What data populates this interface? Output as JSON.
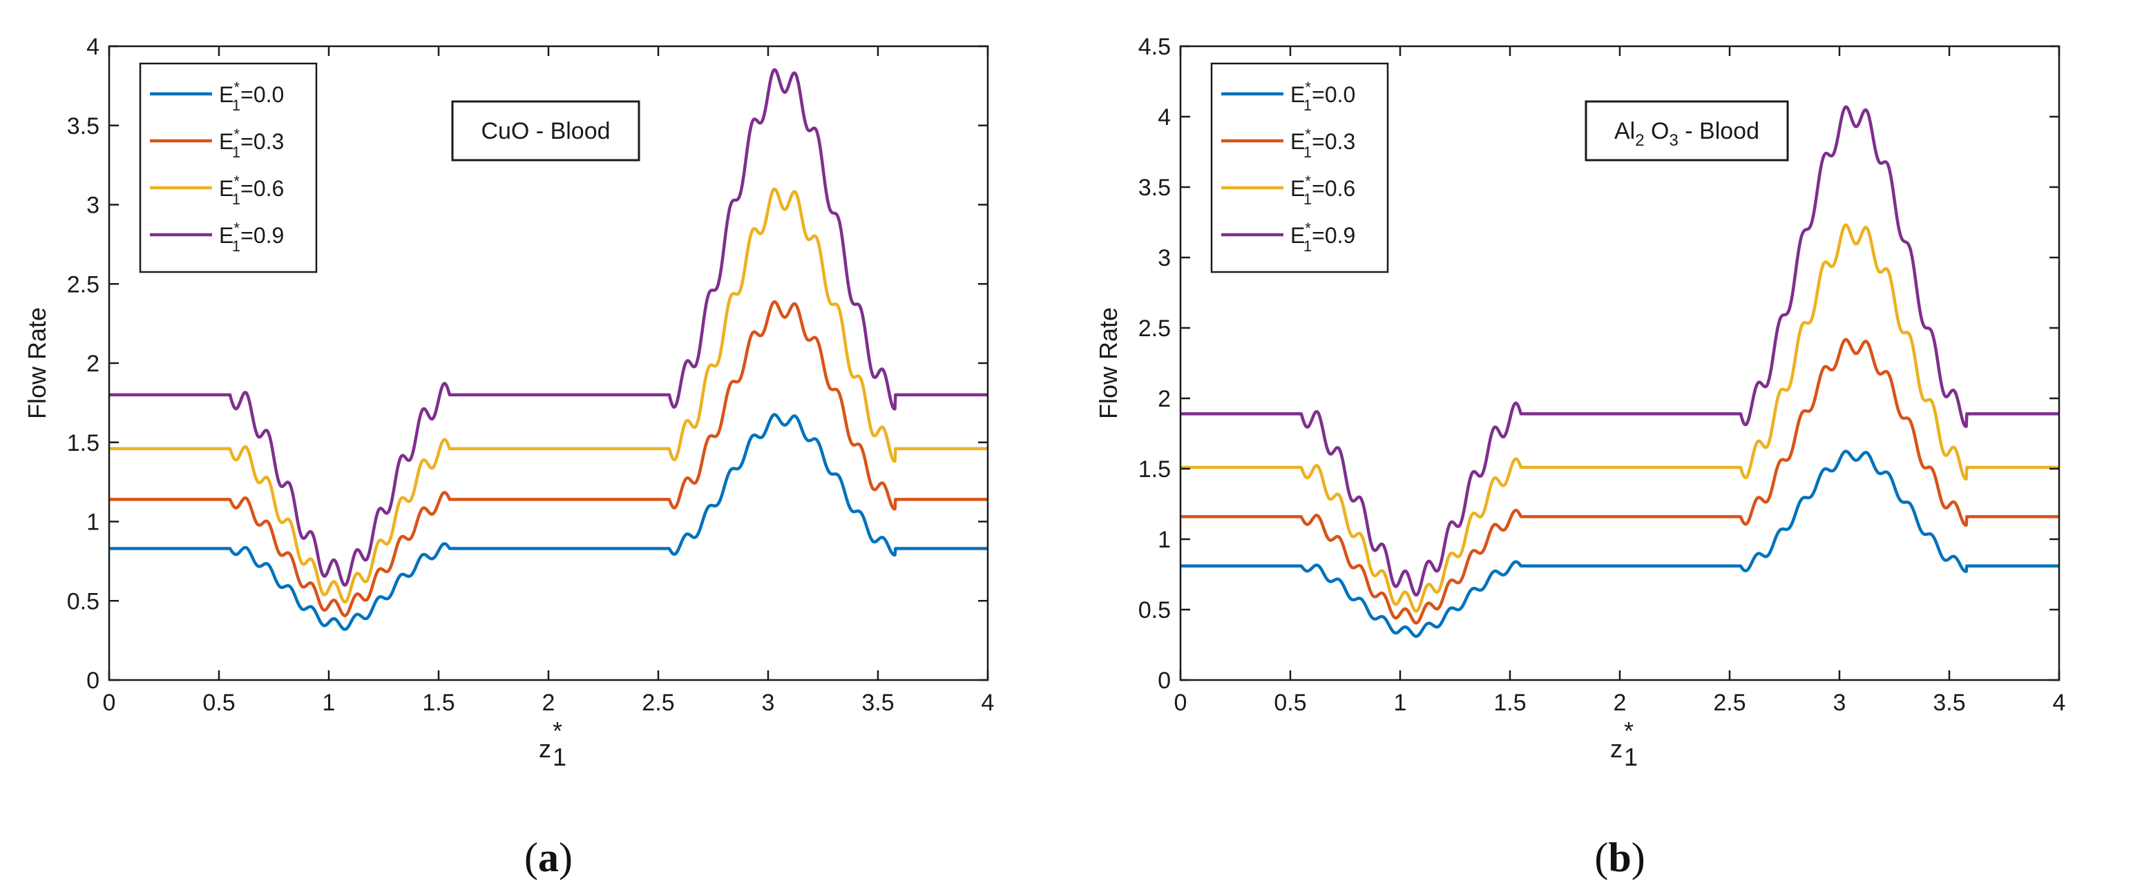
{
  "colors": {
    "axis": "#1a1a1a",
    "series": [
      "#0072BD",
      "#D95319",
      "#EDB120",
      "#7E2F8E"
    ]
  },
  "chart_data": [
    {
      "type": "line",
      "panel_label": "a",
      "annotation": "CuO - Blood",
      "annotation_parts": [
        {
          "text": "CuO - Blood",
          "sub": false
        }
      ],
      "xlabel": "z",
      "xlabel_sup": "*",
      "xlabel_sub": "1",
      "ylabel": "Flow Rate",
      "xlim": [
        0,
        4
      ],
      "ylim": [
        0,
        4
      ],
      "xticks": [
        0,
        0.5,
        1,
        1.5,
        2,
        2.5,
        3,
        3.5,
        4
      ],
      "xtick_labels": [
        "0",
        "0.5",
        "1",
        "1.5",
        "2",
        "2.5",
        "3",
        "3.5",
        "4"
      ],
      "yticks": [
        0,
        0.5,
        1,
        1.5,
        2,
        2.5,
        3,
        3.5,
        4
      ],
      "ytick_labels": [
        "0",
        "0.5",
        "1",
        "1.5",
        "2",
        "2.5",
        "3",
        "3.5",
        "4"
      ],
      "legend_position": "top-left",
      "series": [
        {
          "name": "E",
          "legend_sup": "*",
          "legend_sub": "1",
          "legend_value": "=0.0",
          "base": 0.83,
          "min": 0.35,
          "max": 1.65
        },
        {
          "name": "E",
          "legend_sup": "*",
          "legend_sub": "1",
          "legend_value": "=0.3",
          "base": 1.14,
          "min": 0.45,
          "max": 2.35
        },
        {
          "name": "E",
          "legend_sup": "*",
          "legend_sub": "1",
          "legend_value": "=0.6",
          "base": 1.46,
          "min": 0.55,
          "max": 3.05
        },
        {
          "name": "E",
          "legend_sup": "*",
          "legend_sub": "1",
          "legend_value": "=0.9",
          "base": 1.8,
          "min": 0.67,
          "max": 3.8
        }
      ]
    },
    {
      "type": "line",
      "panel_label": "b",
      "annotation": "Al2 O3 - Blood",
      "annotation_parts": [
        {
          "text": "Al",
          "sub": false
        },
        {
          "text": "2",
          "sub": true
        },
        {
          "text": " O",
          "sub": false
        },
        {
          "text": "3",
          "sub": true
        },
        {
          "text": " - Blood",
          "sub": false
        }
      ],
      "xlabel": "z",
      "xlabel_sup": "*",
      "xlabel_sub": "1",
      "ylabel": "Flow Rate",
      "xlim": [
        0,
        4
      ],
      "ylim": [
        0,
        4.5
      ],
      "xticks": [
        0,
        0.5,
        1,
        1.5,
        2,
        2.5,
        3,
        3.5,
        4
      ],
      "xtick_labels": [
        "0",
        "0.5",
        "1",
        "1.5",
        "2",
        "2.5",
        "3",
        "3.5",
        "4"
      ],
      "yticks": [
        0,
        0.5,
        1,
        1.5,
        2,
        2.5,
        3,
        3.5,
        4,
        4.5
      ],
      "ytick_labels": [
        "0",
        "0.5",
        "1",
        "1.5",
        "2",
        "2.5",
        "3",
        "3.5",
        "4",
        "4.5"
      ],
      "legend_position": "top-left",
      "series": [
        {
          "name": "E",
          "legend_sup": "*",
          "legend_sub": "1",
          "legend_value": "=0.0",
          "base": 0.81,
          "min": 0.34,
          "max": 1.6
        },
        {
          "name": "E",
          "legend_sup": "*",
          "legend_sub": "1",
          "legend_value": "=0.3",
          "base": 1.16,
          "min": 0.45,
          "max": 2.38
        },
        {
          "name": "E",
          "legend_sup": "*",
          "legend_sub": "1",
          "legend_value": "=0.6",
          "base": 1.51,
          "min": 0.55,
          "max": 3.18
        },
        {
          "name": "E",
          "legend_sup": "*",
          "legend_sub": "1",
          "legend_value": "=0.9",
          "base": 1.89,
          "min": 0.68,
          "max": 4.02
        }
      ]
    }
  ]
}
